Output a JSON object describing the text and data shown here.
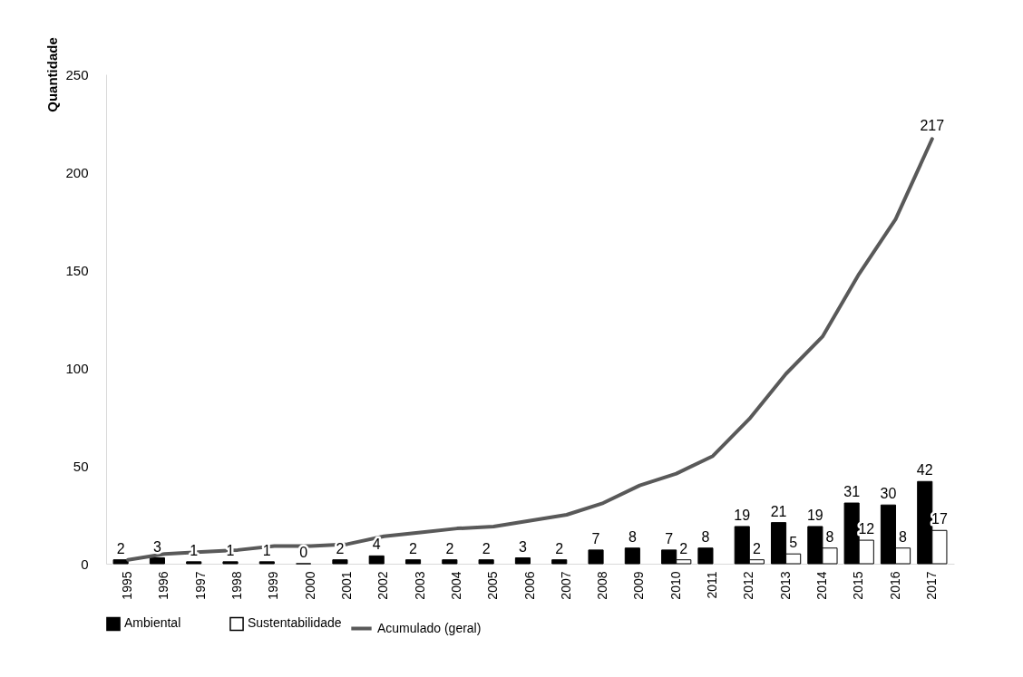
{
  "chart_data": {
    "type": "bar",
    "ylabel": "Quantidade",
    "categories": [
      "1995",
      "1996",
      "1997",
      "1998",
      "1999",
      "2000",
      "2001",
      "2002",
      "2003",
      "2004",
      "2005",
      "2006",
      "2007",
      "2008",
      "2009",
      "2010",
      "2011",
      "2012",
      "2013",
      "2014",
      "2015",
      "2016",
      "2017"
    ],
    "ylim": [
      0,
      250
    ],
    "yticks": [
      0,
      50,
      100,
      150,
      200,
      250
    ],
    "grid": false,
    "legend": "bottom",
    "series": [
      {
        "name": "Ambiental",
        "color": "#000000",
        "values": [
          2,
          3,
          1,
          1,
          1,
          0,
          2,
          4,
          2,
          2,
          2,
          3,
          2,
          7,
          8,
          7,
          8,
          19,
          21,
          19,
          31,
          30,
          42
        ],
        "value_labels": [
          "2",
          "3",
          "1",
          "1",
          "1",
          "0",
          "2",
          "4",
          "2",
          "2",
          "2",
          "3",
          "2",
          "7",
          "8",
          "7",
          "8",
          "19",
          "21",
          "19",
          "31",
          "30",
          "42"
        ]
      },
      {
        "name": "Sustentabilidade",
        "color": "#ffffff",
        "values": [
          null,
          null,
          null,
          null,
          null,
          null,
          null,
          null,
          null,
          null,
          null,
          null,
          null,
          null,
          null,
          2,
          null,
          2,
          5,
          8,
          12,
          8,
          17
        ],
        "value_labels": [
          null,
          null,
          null,
          null,
          null,
          null,
          null,
          null,
          null,
          null,
          null,
          null,
          null,
          null,
          null,
          "2",
          null,
          "2",
          "5",
          "8",
          "12",
          "8",
          "17"
        ]
      },
      {
        "name": "Acumulado (geral)",
        "type": "line",
        "color": "#595959",
        "values": [
          2,
          5,
          6,
          7,
          9,
          9,
          10,
          14,
          16,
          18,
          19,
          22,
          25,
          31,
          40,
          46,
          55,
          74,
          97,
          116,
          148,
          176,
          217
        ],
        "value_labels": [
          null,
          null,
          null,
          null,
          null,
          null,
          null,
          null,
          null,
          null,
          null,
          null,
          null,
          null,
          null,
          null,
          null,
          null,
          null,
          null,
          null,
          null,
          "217"
        ]
      }
    ]
  }
}
